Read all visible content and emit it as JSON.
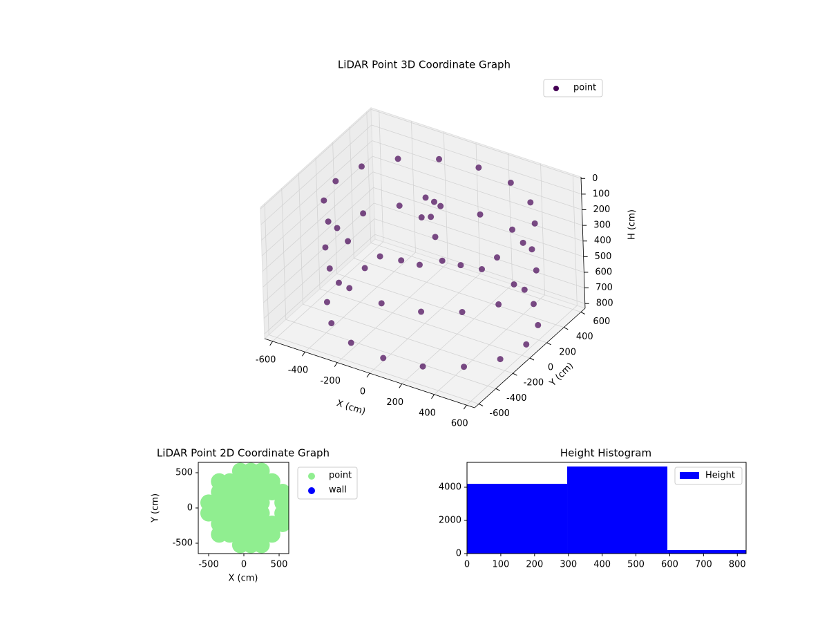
{
  "chart_data": [
    {
      "type": "scatter3d",
      "title": "LiDAR Point 3D Coordinate Graph",
      "x_label": "X (cm)",
      "y_label": "Y (cm)",
      "z_label": "H (cm)",
      "xlim": [
        -650,
        650
      ],
      "ylim": [
        -650,
        650
      ],
      "zlim": [
        830,
        -10
      ],
      "xticks": [
        -600,
        -400,
        -200,
        0,
        200,
        400,
        600
      ],
      "yticks": [
        -600,
        -400,
        -200,
        0,
        200,
        400,
        600
      ],
      "zticks": [
        0,
        100,
        200,
        300,
        400,
        500,
        600,
        700,
        800
      ],
      "grid": true,
      "legend": "upper right",
      "series": [
        {
          "name": "point",
          "color": "#440154",
          "x": [
            630,
            586,
            460,
            272,
            50,
            -172,
            -360,
            -486,
            -530,
            -486,
            -360,
            -172,
            50,
            272,
            460,
            586,
            630,
            586,
            460,
            272,
            50,
            -172,
            -360,
            -486,
            -530,
            -486,
            -360,
            -172,
            50,
            272,
            460,
            586,
            630,
            586,
            460,
            272,
            50,
            -172,
            -360,
            -486,
            -530,
            -486,
            -360,
            -172,
            50,
            272,
            460,
            586,
            -80,
            -40,
            -120,
            0,
            -60
          ],
          "y": [
            0,
            222,
            410,
            536,
            580,
            536,
            410,
            222,
            0,
            -222,
            -410,
            -536,
            -580,
            -536,
            -410,
            -222,
            0,
            222,
            410,
            536,
            580,
            536,
            410,
            222,
            0,
            -222,
            -410,
            -536,
            -580,
            -536,
            -410,
            -222,
            0,
            222,
            410,
            536,
            580,
            536,
            410,
            222,
            0,
            -222,
            -410,
            -536,
            -580,
            -536,
            -410,
            -222,
            200,
            180,
            220,
            150,
            260
          ],
          "z": [
            100,
            100,
            100,
            100,
            100,
            100,
            100,
            100,
            100,
            100,
            100,
            100,
            100,
            100,
            100,
            100,
            400,
            400,
            400,
            400,
            400,
            400,
            400,
            400,
            400,
            400,
            400,
            400,
            400,
            400,
            400,
            400,
            750,
            750,
            750,
            750,
            750,
            750,
            750,
            750,
            750,
            750,
            750,
            750,
            750,
            750,
            750,
            750,
            150,
            250,
            300,
            350,
            200
          ]
        }
      ]
    },
    {
      "type": "scatter",
      "title": "LiDAR Point 2D Coordinate Graph",
      "x_label": "X (cm)",
      "y_label": "Y (cm)",
      "xlim": [
        -647,
        637
      ],
      "ylim": [
        -647,
        647
      ],
      "xticks": [
        -500,
        0,
        500
      ],
      "yticks": [
        -500,
        0,
        500
      ],
      "legend": "outside right",
      "series": [
        {
          "name": "point",
          "color": "#90ee90",
          "x": [
            -50,
            100,
            250,
            -350,
            -200,
            -50,
            100,
            250,
            400,
            -350,
            -200,
            -50,
            100,
            250,
            400,
            550,
            -500,
            -350,
            -200,
            -50,
            100,
            250,
            550,
            -500,
            -350,
            -200,
            -50,
            100,
            250,
            550,
            -350,
            -200,
            -50,
            100,
            250,
            400,
            550,
            -350,
            -200,
            -50,
            100,
            250,
            400,
            -50,
            100,
            250
          ],
          "y": [
            -525,
            -525,
            -525,
            -375,
            -375,
            -375,
            -375,
            -375,
            -375,
            -225,
            -225,
            -225,
            -225,
            -225,
            -225,
            -225,
            -75,
            -75,
            -75,
            -75,
            -75,
            -75,
            -75,
            75,
            75,
            75,
            75,
            75,
            75,
            75,
            225,
            225,
            225,
            225,
            225,
            225,
            225,
            375,
            375,
            375,
            375,
            375,
            375,
            525,
            525,
            525
          ]
        },
        {
          "name": "wall",
          "color": "#0000ff",
          "x": [],
          "y": []
        }
      ]
    },
    {
      "type": "histogram",
      "title": "Height Histogram",
      "xlim": [
        0,
        826
      ],
      "ylim": [
        0,
        5500
      ],
      "xticks": [
        0,
        100,
        200,
        300,
        400,
        500,
        600,
        700,
        800
      ],
      "yticks": [
        0,
        2000,
        4000
      ],
      "bins": [
        0,
        296.5,
        593,
        826
      ],
      "legend": "upper right",
      "series": [
        {
          "name": "Height",
          "color": "#0000ff",
          "values": [
            4208,
            5250,
            208
          ]
        }
      ]
    }
  ]
}
